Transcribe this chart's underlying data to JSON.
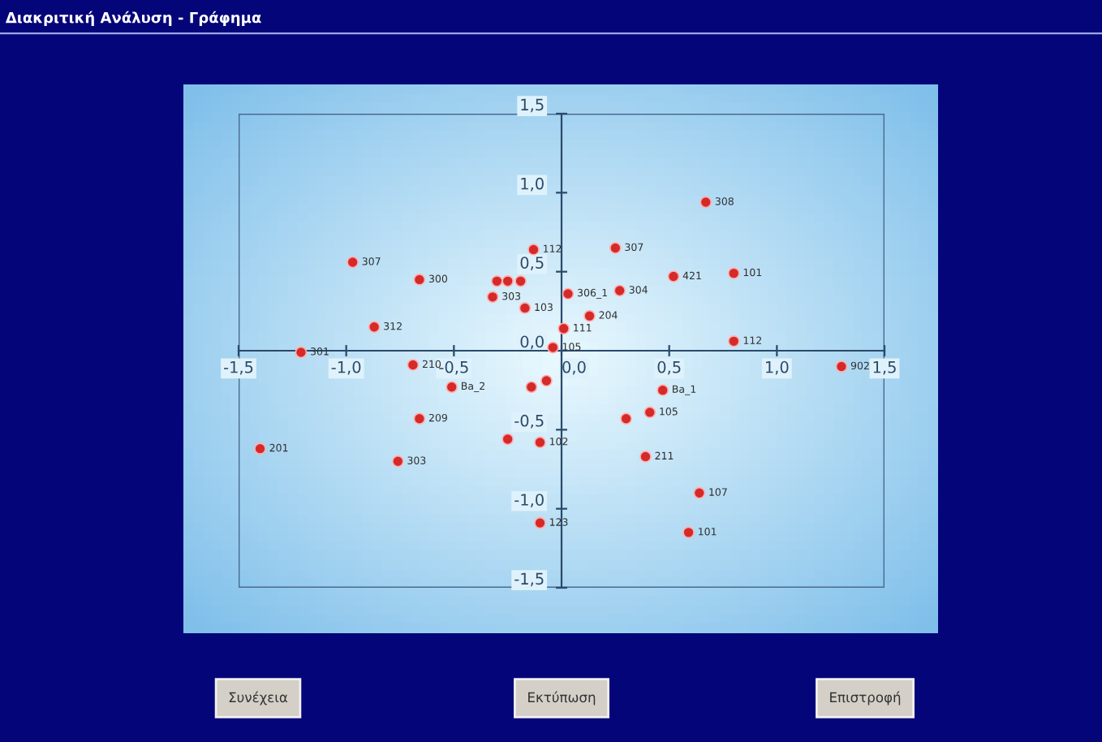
{
  "chart_data": {
    "type": "scatter",
    "title": "Διακριτική Ανάλυση - Γράφημα",
    "x": [
      -0.97,
      -0.66,
      -0.87,
      -1.21,
      -0.69,
      -0.51,
      -0.66,
      -1.4,
      -0.76,
      -0.25,
      -0.1,
      -0.14,
      -0.07,
      -0.13,
      -0.3,
      -0.25,
      -0.19,
      -0.32,
      -0.17,
      0.03,
      0.67,
      0.25,
      0.52,
      0.8,
      0.27,
      0.13,
      0.01,
      -0.04,
      0.8,
      1.3,
      0.47,
      0.41,
      0.3,
      0.39,
      0.64,
      0.59,
      -0.1
    ],
    "series": [
      {
        "color": "#d42a2a",
        "values": [
          0.56,
          0.45,
          0.15,
          -0.01,
          -0.09,
          -0.23,
          -0.43,
          -0.62,
          -0.7,
          -0.56,
          -0.58,
          -0.23,
          -0.19,
          0.64,
          0.44,
          0.44,
          0.44,
          0.34,
          0.27,
          0.36,
          0.94,
          0.65,
          0.47,
          0.49,
          0.38,
          0.22,
          0.14,
          0.02,
          0.06,
          -0.1,
          -0.25,
          -0.39,
          -0.43,
          -0.67,
          -0.9,
          -1.15,
          -1.09
        ]
      }
    ],
    "marker": "circle",
    "grid": false,
    "xlim": [
      -1.5,
      1.5
    ],
    "ylim": [
      -1.5,
      1.5
    ],
    "xticks": [
      {
        "value": -1.5,
        "label": "-1,5"
      },
      {
        "value": -1.0,
        "label": "-1,0"
      },
      {
        "value": -0.5,
        "label": "-0,5"
      },
      {
        "value": 0,
        "label": "0,0"
      },
      {
        "value": 0.5,
        "label": "0,5"
      },
      {
        "value": 1.0,
        "label": "1,0"
      },
      {
        "value": 1.5,
        "label": "1,5"
      }
    ],
    "yticks": [
      {
        "value": -1.5,
        "label": "-1,5"
      },
      {
        "value": -1.0,
        "label": "-1,0"
      },
      {
        "value": -0.5,
        "label": "-0,5"
      },
      {
        "value": 0,
        "label": "0,0"
      },
      {
        "value": 0.5,
        "label": "0,5"
      },
      {
        "value": 1.0,
        "label": "1,0"
      },
      {
        "value": 1.5,
        "label": "1,5"
      }
    ],
    "annotations": [
      {
        "text": "307",
        "x": -0.97,
        "y": 0.56
      },
      {
        "text": "300",
        "x": -0.66,
        "y": 0.45
      },
      {
        "text": "312",
        "x": -0.87,
        "y": 0.15
      },
      {
        "text": "301",
        "x": -1.21,
        "y": -0.01
      },
      {
        "text": "210",
        "x": -0.69,
        "y": -0.09
      },
      {
        "text": "Ba_2",
        "x": -0.51,
        "y": -0.23
      },
      {
        "text": "209",
        "x": -0.66,
        "y": -0.43
      },
      {
        "text": "201",
        "x": -1.4,
        "y": -0.62
      },
      {
        "text": "303",
        "x": -0.76,
        "y": -0.7
      },
      {
        "text": "102",
        "x": -0.1,
        "y": -0.58
      },
      {
        "text": "112",
        "x": -0.13,
        "y": 0.64
      },
      {
        "text": "303",
        "x": -0.32,
        "y": 0.34
      },
      {
        "text": "103",
        "x": -0.17,
        "y": 0.27
      },
      {
        "text": "306_1",
        "x": 0.03,
        "y": 0.36
      },
      {
        "text": "308",
        "x": 0.67,
        "y": 0.94
      },
      {
        "text": "307",
        "x": 0.25,
        "y": 0.65
      },
      {
        "text": "421",
        "x": 0.52,
        "y": 0.47
      },
      {
        "text": "101",
        "x": 0.8,
        "y": 0.49
      },
      {
        "text": "304",
        "x": 0.27,
        "y": 0.38
      },
      {
        "text": "204",
        "x": 0.13,
        "y": 0.22
      },
      {
        "text": "111",
        "x": 0.01,
        "y": 0.14
      },
      {
        "text": "105",
        "x": -0.04,
        "y": 0.02
      },
      {
        "text": "112",
        "x": 0.8,
        "y": 0.06
      },
      {
        "text": "902",
        "x": 1.3,
        "y": -0.1
      },
      {
        "text": "Ba_1",
        "x": 0.47,
        "y": -0.25
      },
      {
        "text": "105",
        "x": 0.41,
        "y": -0.39
      },
      {
        "text": "211",
        "x": 0.39,
        "y": -0.67
      },
      {
        "text": "107",
        "x": 0.64,
        "y": -0.9
      },
      {
        "text": "101",
        "x": 0.59,
        "y": -1.15
      },
      {
        "text": "123",
        "x": -0.1,
        "y": -1.09
      },
      "Συνέχεια",
      "Εκτύπωση",
      "Επιστροφή"
    ]
  }
}
